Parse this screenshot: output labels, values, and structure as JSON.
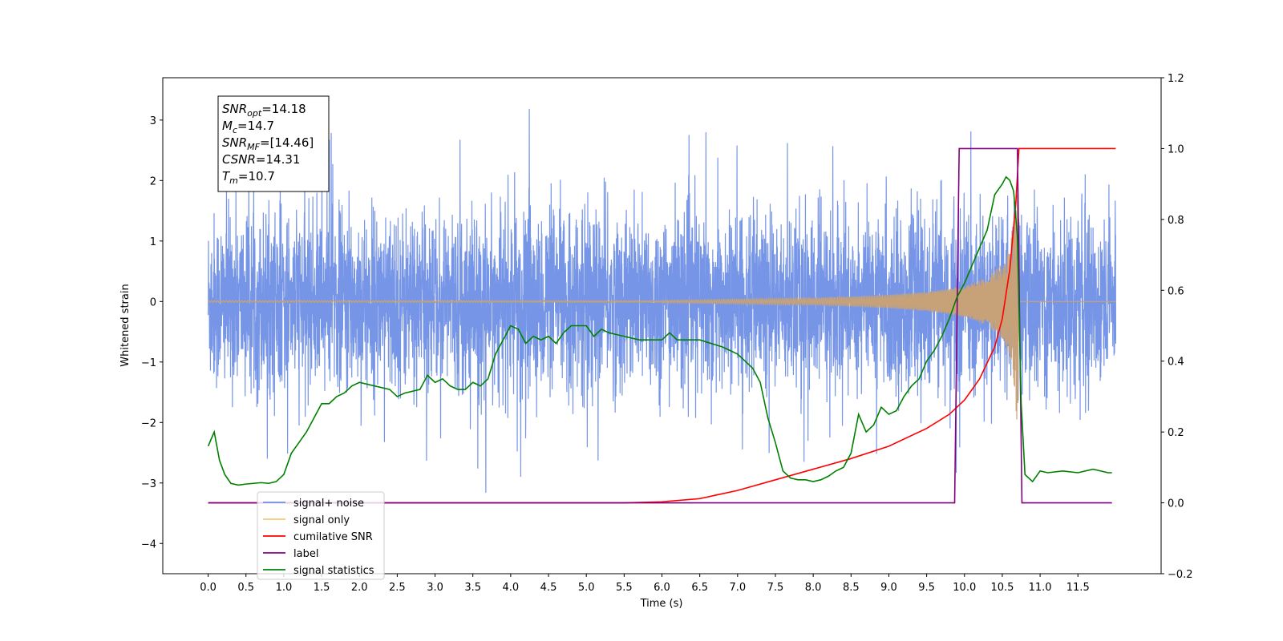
{
  "chart_data": {
    "type": "line",
    "xlabel": "Time (s)",
    "ylabel_left": "Whitened strain",
    "xlim": [
      -0.6,
      12.6
    ],
    "ylim_left": [
      -4.5,
      3.7
    ],
    "ylim_right": [
      -0.2,
      1.2
    ],
    "x_ticks": [
      "0.0",
      "0.5",
      "1.0",
      "1.5",
      "2.0",
      "2.5",
      "3.0",
      "3.5",
      "4.0",
      "4.5",
      "5.0",
      "5.5",
      "6.0",
      "6.5",
      "7.0",
      "7.5",
      "8.0",
      "8.5",
      "9.0",
      "9.5",
      "10.0",
      "10.5",
      "11.0",
      "11.5"
    ],
    "y_ticks_left": [
      "3",
      "2",
      "1",
      "0",
      "−1",
      "−2",
      "−3",
      "−4"
    ],
    "y_ticks_right": [
      "1.2",
      "1.0",
      "0.8",
      "0.6",
      "0.4",
      "0.2",
      "0.0",
      "−0.2"
    ],
    "annotation": {
      "lines": [
        {
          "label": "SNR",
          "sub": "opt",
          "value": "=14.18"
        },
        {
          "label": "M",
          "sub": "c",
          "value": "=14.7"
        },
        {
          "label": "SNR",
          "sub": "MF",
          "value": "=[14.46]"
        },
        {
          "label": "CSNR",
          "sub": "",
          "value": "=14.31"
        },
        {
          "label": "T",
          "sub": "m",
          "value": "=10.7"
        }
      ]
    },
    "legend": {
      "placement": "lower-left",
      "entries": [
        {
          "name": "signal+ noise",
          "color": "#6f8fe6"
        },
        {
          "name": "signal only",
          "color": "#f5c878"
        },
        {
          "name": "cumilative SNR",
          "color": "#ff0000"
        },
        {
          "name": "label",
          "color": "#800080"
        },
        {
          "name": "signal statistics",
          "color": "#008000"
        }
      ]
    },
    "series": [
      {
        "name": "signal+ noise",
        "axis": "left",
        "color": "#6f8fe6",
        "envelope": {
          "x": [
            0.0,
            12.0
          ],
          "typical_range": [
            -1.5,
            1.5
          ],
          "peak_max": 3.33,
          "peak_min": -3.35
        }
      },
      {
        "name": "signal only",
        "axis": "left",
        "color": "#c7a278",
        "envelope": {
          "x": [
            6.0,
            6.5,
            7.0,
            7.5,
            8.0,
            8.5,
            9.0,
            9.5,
            10.0,
            10.3,
            10.5,
            10.6,
            10.65,
            10.7,
            10.72
          ],
          "amplitude": [
            0.02,
            0.03,
            0.04,
            0.05,
            0.06,
            0.08,
            0.11,
            0.16,
            0.25,
            0.4,
            0.62,
            0.9,
            1.3,
            2.1,
            0.0
          ]
        }
      },
      {
        "name": "cumilative SNR",
        "axis": "right",
        "color": "#ff0000",
        "x": [
          0.0,
          5.5,
          6.0,
          6.5,
          7.0,
          7.5,
          8.0,
          8.5,
          9.0,
          9.5,
          9.8,
          10.0,
          10.2,
          10.4,
          10.5,
          10.6,
          10.68,
          10.72,
          12.0
        ],
        "y": [
          0.0,
          0.0,
          0.003,
          0.012,
          0.035,
          0.065,
          0.095,
          0.125,
          0.16,
          0.21,
          0.25,
          0.29,
          0.35,
          0.44,
          0.52,
          0.66,
          0.85,
          1.0,
          1.0
        ]
      },
      {
        "name": "label",
        "axis": "right",
        "color": "#800080",
        "x": [
          0.0,
          9.87,
          9.93,
          10.7,
          10.76,
          11.95
        ],
        "y": [
          0.0,
          0.0,
          1.0,
          1.0,
          0.0,
          0.0
        ]
      },
      {
        "name": "signal statistics",
        "axis": "right",
        "color": "#008000",
        "x": [
          0.0,
          0.08,
          0.15,
          0.22,
          0.3,
          0.4,
          0.5,
          0.6,
          0.7,
          0.8,
          0.9,
          1.0,
          1.1,
          1.2,
          1.3,
          1.4,
          1.5,
          1.6,
          1.7,
          1.8,
          1.9,
          2.0,
          2.2,
          2.4,
          2.5,
          2.6,
          2.8,
          2.9,
          3.0,
          3.1,
          3.2,
          3.3,
          3.4,
          3.5,
          3.6,
          3.7,
          3.8,
          3.9,
          4.0,
          4.1,
          4.2,
          4.3,
          4.4,
          4.5,
          4.6,
          4.7,
          4.8,
          5.0,
          5.1,
          5.2,
          5.3,
          5.5,
          5.7,
          6.0,
          6.1,
          6.2,
          6.5,
          6.8,
          7.0,
          7.1,
          7.2,
          7.3,
          7.4,
          7.5,
          7.6,
          7.7,
          7.8,
          7.9,
          8.0,
          8.1,
          8.2,
          8.3,
          8.4,
          8.5,
          8.6,
          8.7,
          8.8,
          8.9,
          9.0,
          9.1,
          9.2,
          9.3,
          9.4,
          9.5,
          9.6,
          9.7,
          9.8,
          9.9,
          10.0,
          10.1,
          10.2,
          10.3,
          10.4,
          10.5,
          10.55,
          10.6,
          10.65,
          10.7,
          10.75,
          10.8,
          10.9,
          11.0,
          11.1,
          11.3,
          11.5,
          11.7,
          11.9,
          11.95
        ],
        "y": [
          0.16,
          0.2,
          0.12,
          0.08,
          0.055,
          0.05,
          0.053,
          0.055,
          0.057,
          0.055,
          0.06,
          0.08,
          0.14,
          0.17,
          0.2,
          0.24,
          0.28,
          0.28,
          0.3,
          0.31,
          0.33,
          0.34,
          0.33,
          0.32,
          0.3,
          0.31,
          0.32,
          0.36,
          0.34,
          0.35,
          0.33,
          0.32,
          0.32,
          0.34,
          0.33,
          0.35,
          0.42,
          0.46,
          0.5,
          0.49,
          0.45,
          0.47,
          0.46,
          0.47,
          0.45,
          0.48,
          0.5,
          0.5,
          0.47,
          0.49,
          0.48,
          0.47,
          0.46,
          0.46,
          0.48,
          0.46,
          0.46,
          0.44,
          0.42,
          0.4,
          0.38,
          0.34,
          0.24,
          0.17,
          0.09,
          0.07,
          0.065,
          0.065,
          0.06,
          0.065,
          0.075,
          0.09,
          0.1,
          0.14,
          0.25,
          0.2,
          0.22,
          0.27,
          0.25,
          0.26,
          0.3,
          0.33,
          0.35,
          0.4,
          0.43,
          0.47,
          0.52,
          0.58,
          0.62,
          0.67,
          0.72,
          0.77,
          0.87,
          0.9,
          0.92,
          0.91,
          0.88,
          0.75,
          0.28,
          0.08,
          0.06,
          0.09,
          0.085,
          0.09,
          0.085,
          0.095,
          0.085,
          0.085
        ]
      }
    ]
  }
}
